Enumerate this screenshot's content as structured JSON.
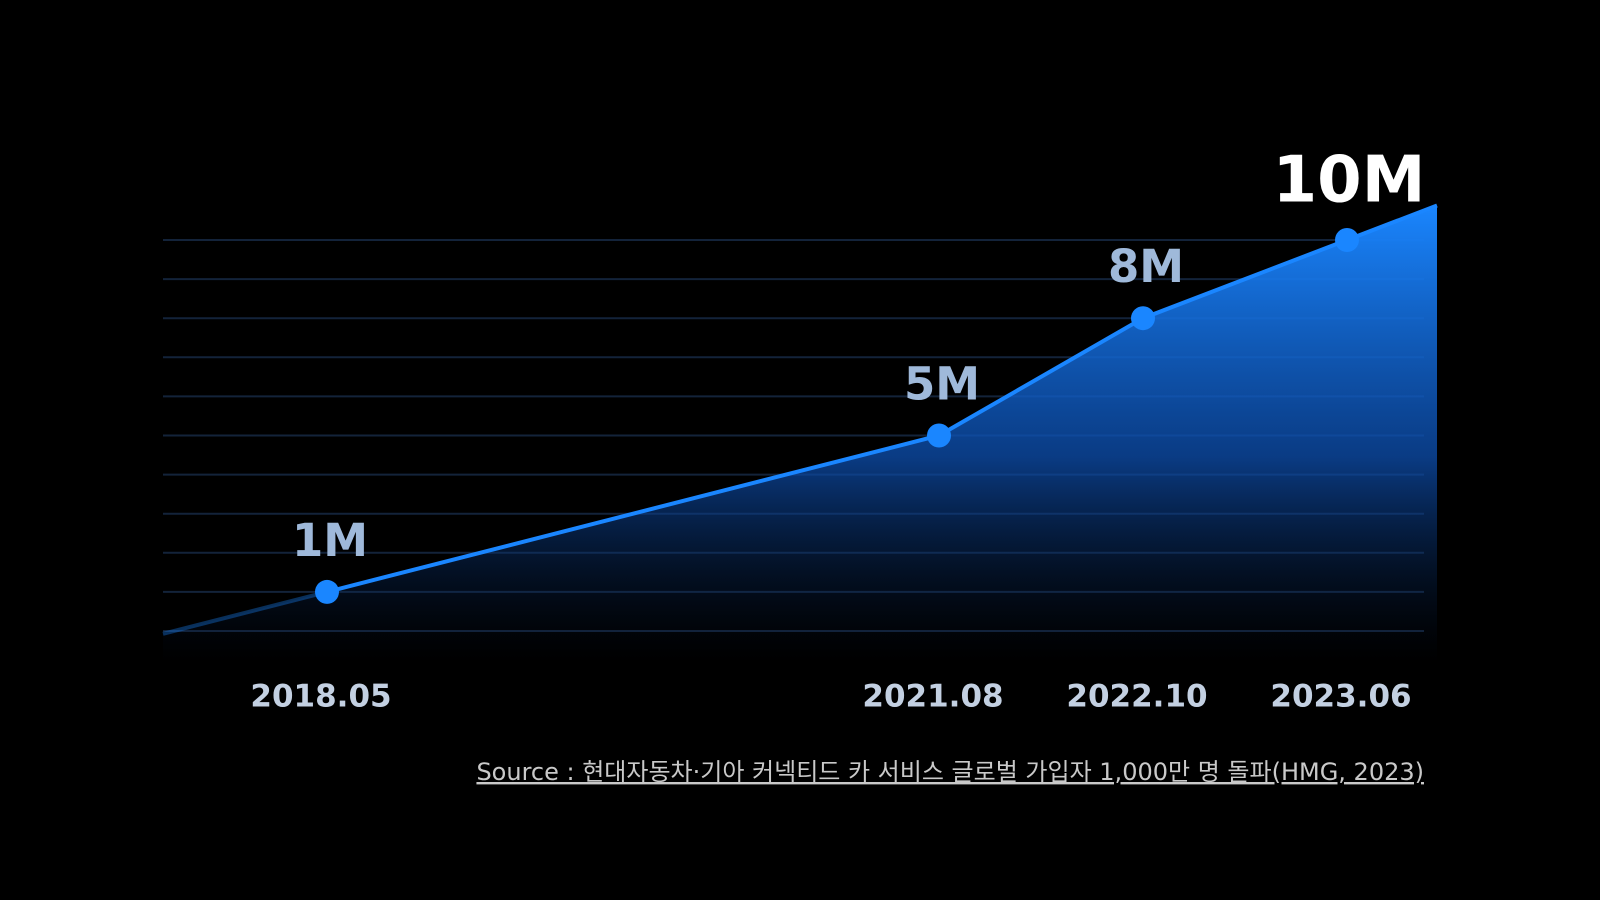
{
  "chart_data": {
    "type": "line",
    "categories": [
      "2018.05",
      "2021.08",
      "2022.10",
      "2023.06"
    ],
    "values": [
      1,
      5,
      8,
      10
    ],
    "value_labels": [
      "1M",
      "5M",
      "8M",
      "10M"
    ],
    "color": "#1a86ff",
    "ylim": [
      0,
      10
    ],
    "yticks": [
      0,
      1,
      2,
      3,
      4,
      5,
      6,
      7,
      8,
      9,
      10
    ],
    "grid": true,
    "source": "Source : 현대자동차·기아 커넥티드 카 서비스 글로벌 가입자 1,000만 명 돌파(HMG, 2023)"
  }
}
